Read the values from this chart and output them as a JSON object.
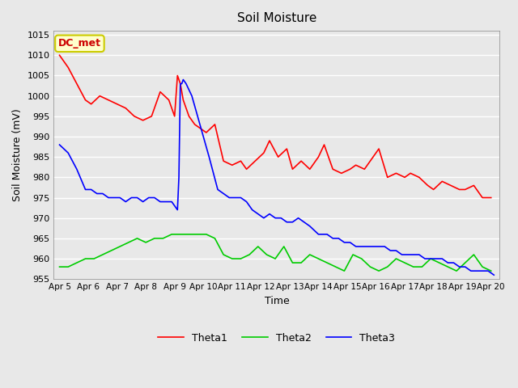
{
  "title": "Soil Moisture",
  "xlabel": "Time",
  "ylabel": "Soil Moisture (mV)",
  "ylim": [
    955,
    1016
  ],
  "yticks": [
    955,
    960,
    965,
    970,
    975,
    980,
    985,
    990,
    995,
    1000,
    1005,
    1010,
    1015
  ],
  "background_color": "#e8e8e8",
  "plot_bg_color": "#e8e8e8",
  "grid_color": "#ffffff",
  "annotation_text": "DC_met",
  "annotation_bg": "#ffffcc",
  "annotation_border": "#cccc00",
  "legend_labels": [
    "Theta1",
    "Theta2",
    "Theta3"
  ],
  "colors": [
    "#ff0000",
    "#00cc00",
    "#0000ff"
  ],
  "x_ticks": [
    0,
    1,
    2,
    3,
    4,
    5,
    6,
    7,
    8,
    9,
    10,
    11,
    12,
    13,
    14,
    15
  ],
  "x_labels": [
    "Apr 5",
    "Apr 6",
    "Apr 7",
    "Apr 8",
    "Apr 9",
    "Apr 10",
    "Apr 11",
    "Apr 12",
    "Apr 13",
    "Apr 14",
    "Apr 15",
    "Apr 16",
    "Apr 17",
    "Apr 18",
    "Apr 19",
    "Apr 20"
  ],
  "theta1_x": [
    0,
    0.3,
    0.6,
    0.9,
    1.1,
    1.4,
    1.7,
    2.0,
    2.3,
    2.6,
    2.9,
    3.2,
    3.5,
    3.8,
    4.0,
    4.1,
    4.2,
    4.3,
    4.5,
    4.7,
    4.9,
    5.1,
    5.4,
    5.7,
    6.0,
    6.3,
    6.5,
    6.8,
    7.1,
    7.3,
    7.6,
    7.9,
    8.1,
    8.4,
    8.7,
    9.0,
    9.2,
    9.5,
    9.8,
    10.1,
    10.3,
    10.6,
    10.9,
    11.1,
    11.4,
    11.7,
    12.0,
    12.2,
    12.5,
    12.8,
    13.0,
    13.3,
    13.6,
    13.9,
    14.1,
    14.4,
    14.7,
    15.0
  ],
  "theta1_y": [
    1010,
    1007,
    1003,
    999,
    998,
    1000,
    999,
    998,
    997,
    995,
    994,
    995,
    1001,
    999,
    995,
    1005,
    1003,
    999,
    995,
    993,
    992,
    991,
    993,
    984,
    983,
    984,
    982,
    984,
    986,
    989,
    985,
    987,
    982,
    984,
    982,
    985,
    988,
    982,
    981,
    982,
    983,
    982,
    985,
    987,
    980,
    981,
    980,
    981,
    980,
    978,
    977,
    979,
    978,
    977,
    977,
    978,
    975,
    975
  ],
  "theta2_x": [
    0,
    0.3,
    0.6,
    0.9,
    1.2,
    1.5,
    1.8,
    2.1,
    2.4,
    2.7,
    3.0,
    3.3,
    3.6,
    3.9,
    4.5,
    5.1,
    5.4,
    5.7,
    6.0,
    6.3,
    6.6,
    6.9,
    7.2,
    7.5,
    7.8,
    8.1,
    8.4,
    8.7,
    9.0,
    9.3,
    9.6,
    9.9,
    10.2,
    10.5,
    10.8,
    11.1,
    11.4,
    11.7,
    12.0,
    12.3,
    12.6,
    12.9,
    13.2,
    13.5,
    13.8,
    14.1,
    14.4,
    14.7,
    15.0
  ],
  "theta2_y": [
    958,
    958,
    959,
    960,
    960,
    961,
    962,
    963,
    964,
    965,
    964,
    965,
    965,
    966,
    966,
    966,
    965,
    961,
    960,
    960,
    961,
    963,
    961,
    960,
    963,
    959,
    959,
    961,
    960,
    959,
    958,
    957,
    961,
    960,
    958,
    957,
    958,
    960,
    959,
    958,
    958,
    960,
    959,
    958,
    957,
    959,
    961,
    958,
    957
  ],
  "theta3_x": [
    0,
    0.3,
    0.6,
    0.9,
    1.1,
    1.3,
    1.5,
    1.7,
    1.9,
    2.1,
    2.3,
    2.5,
    2.7,
    2.9,
    3.1,
    3.3,
    3.5,
    3.7,
    3.9,
    4.1,
    4.15,
    4.2,
    4.25,
    4.3,
    4.4,
    4.6,
    4.8,
    5.0,
    5.2,
    5.5,
    5.7,
    5.9,
    6.1,
    6.3,
    6.5,
    6.7,
    6.9,
    7.1,
    7.3,
    7.5,
    7.7,
    7.9,
    8.1,
    8.3,
    8.5,
    8.7,
    9.0,
    9.3,
    9.5,
    9.7,
    9.9,
    10.1,
    10.3,
    10.5,
    10.7,
    10.9,
    11.1,
    11.3,
    11.5,
    11.7,
    11.9,
    12.1,
    12.3,
    12.5,
    12.7,
    12.9,
    13.1,
    13.3,
    13.5,
    13.7,
    13.9,
    14.1,
    14.3,
    14.5,
    14.7,
    14.9,
    15.1
  ],
  "theta3_y": [
    988,
    986,
    982,
    977,
    977,
    976,
    976,
    975,
    975,
    975,
    974,
    975,
    975,
    974,
    975,
    975,
    974,
    974,
    974,
    972,
    980,
    1003,
    1003,
    1004,
    1003,
    1000,
    995,
    990,
    985,
    977,
    976,
    975,
    975,
    975,
    974,
    972,
    971,
    970,
    971,
    970,
    970,
    969,
    969,
    970,
    969,
    968,
    966,
    966,
    965,
    965,
    964,
    964,
    963,
    963,
    963,
    963,
    963,
    963,
    962,
    962,
    961,
    961,
    961,
    961,
    960,
    960,
    960,
    960,
    959,
    959,
    958,
    958,
    957,
    957,
    957,
    957,
    956
  ]
}
